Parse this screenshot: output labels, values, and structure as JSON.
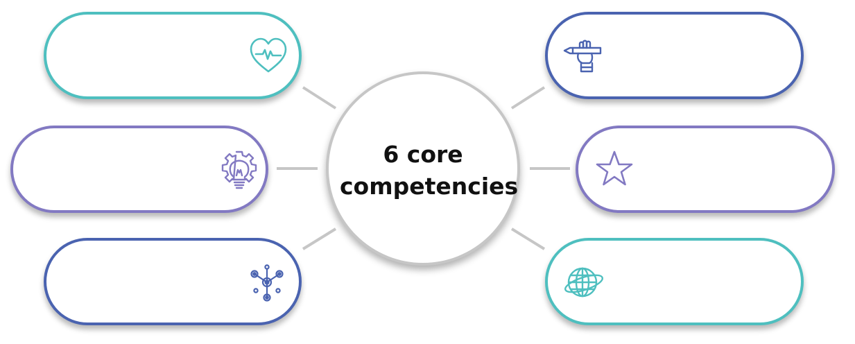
{
  "hub": {
    "title_line1": "6 core",
    "title_line2": "competencies"
  },
  "competencies": [
    {
      "position": "top-left",
      "icon": "heart-pulse-icon",
      "color": "#4ebfbf"
    },
    {
      "position": "middle-left",
      "icon": "lightbulb-gear-icon",
      "color": "#8279c2"
    },
    {
      "position": "bottom-left",
      "icon": "network-nodes-icon",
      "color": "#4a63b0"
    },
    {
      "position": "top-right",
      "icon": "hand-pen-icon",
      "color": "#4a63b0"
    },
    {
      "position": "middle-right",
      "icon": "star-icon",
      "color": "#8279c2"
    },
    {
      "position": "bottom-right",
      "icon": "globe-orbit-icon",
      "color": "#4ebfbf"
    }
  ],
  "colors": {
    "teal": "#4ebfbf",
    "purple": "#8279c2",
    "blue": "#4a63b0",
    "connector": "#c6c6c6"
  }
}
